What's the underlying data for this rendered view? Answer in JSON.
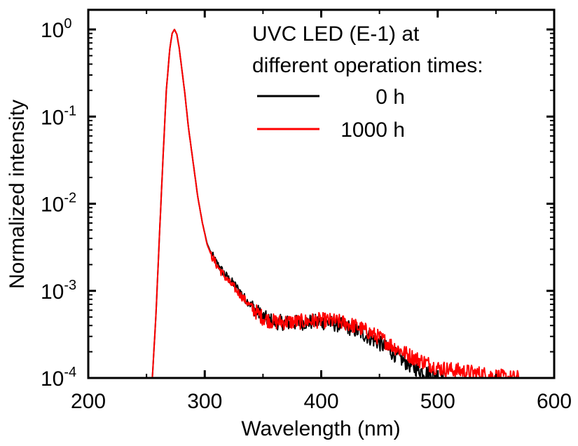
{
  "chart_data": {
    "type": "line",
    "title": "",
    "xlabel": "Wavelength (nm)",
    "ylabel": "Normalized intensity",
    "xlim": [
      200,
      600
    ],
    "ylim": [
      0.0001,
      1.6
    ],
    "yscale": "log",
    "grid": false,
    "x_ticks": [
      200,
      300,
      400,
      500,
      600
    ],
    "x_tick_labels": [
      "200",
      "300",
      "400",
      "500",
      "600"
    ],
    "y_ticks": [
      1,
      0.1,
      0.01,
      0.001,
      0.0001
    ],
    "y_tick_labels": [
      {
        "base": "10",
        "exp": "0"
      },
      {
        "base": "10",
        "exp": "-1"
      },
      {
        "base": "10",
        "exp": "-2"
      },
      {
        "base": "10",
        "exp": "-3"
      },
      {
        "base": "10",
        "exp": "-4"
      }
    ],
    "legend": {
      "placement": "top-right",
      "title_lines": [
        "UVC LED (E-1) at",
        "different operation times:"
      ],
      "entries": [
        "0 h",
        "1000 h"
      ]
    },
    "series": [
      {
        "name": "0 h",
        "color": "#000000",
        "x": [
          255,
          258,
          261,
          264,
          267,
          270,
          272,
          274,
          276,
          278,
          280,
          283,
          286,
          290,
          294,
          298,
          302,
          306,
          310,
          315,
          320,
          325,
          330,
          335,
          340,
          345,
          350,
          355,
          360,
          370,
          380,
          390,
          400,
          410,
          420,
          430,
          440,
          450,
          460,
          470,
          480,
          490,
          500,
          505
        ],
        "y": [
          0.0001,
          0.0005,
          0.004,
          0.03,
          0.2,
          0.6,
          0.9,
          1.0,
          0.88,
          0.62,
          0.38,
          0.18,
          0.075,
          0.03,
          0.012,
          0.006,
          0.0035,
          0.0026,
          0.0021,
          0.0017,
          0.0014,
          0.0012,
          0.001,
          0.0008,
          0.00068,
          0.00058,
          0.0005,
          0.00046,
          0.00044,
          0.00043,
          0.00043,
          0.00044,
          0.00044,
          0.00042,
          0.0004,
          0.00035,
          0.0003,
          0.00025,
          0.0002,
          0.00016,
          0.00013,
          0.000115,
          0.000105,
          0.0001
        ]
      },
      {
        "name": "1000 h",
        "color": "#ff0000",
        "x": [
          255,
          258,
          261,
          264,
          267,
          270,
          272,
          274,
          276,
          278,
          280,
          283,
          286,
          290,
          294,
          298,
          302,
          306,
          310,
          315,
          320,
          325,
          330,
          335,
          340,
          345,
          350,
          355,
          360,
          370,
          380,
          390,
          400,
          410,
          420,
          430,
          440,
          450,
          460,
          470,
          480,
          490,
          500,
          510,
          520,
          530,
          540,
          550,
          560,
          570
        ],
        "y": [
          0.0001,
          0.0005,
          0.004,
          0.03,
          0.2,
          0.6,
          0.9,
          1.0,
          0.88,
          0.62,
          0.38,
          0.18,
          0.075,
          0.03,
          0.012,
          0.006,
          0.0034,
          0.0025,
          0.002,
          0.0016,
          0.0013,
          0.0011,
          0.00092,
          0.00077,
          0.00065,
          0.00056,
          0.00049,
          0.00046,
          0.00044,
          0.00044,
          0.00044,
          0.00045,
          0.00046,
          0.00045,
          0.00043,
          0.00039,
          0.00034,
          0.00029,
          0.00024,
          0.0002,
          0.00017,
          0.00015,
          0.00013,
          0.000125,
          0.00012,
          0.000115,
          0.00011,
          0.000105,
          0.0001,
          0.0001
        ]
      }
    ]
  }
}
